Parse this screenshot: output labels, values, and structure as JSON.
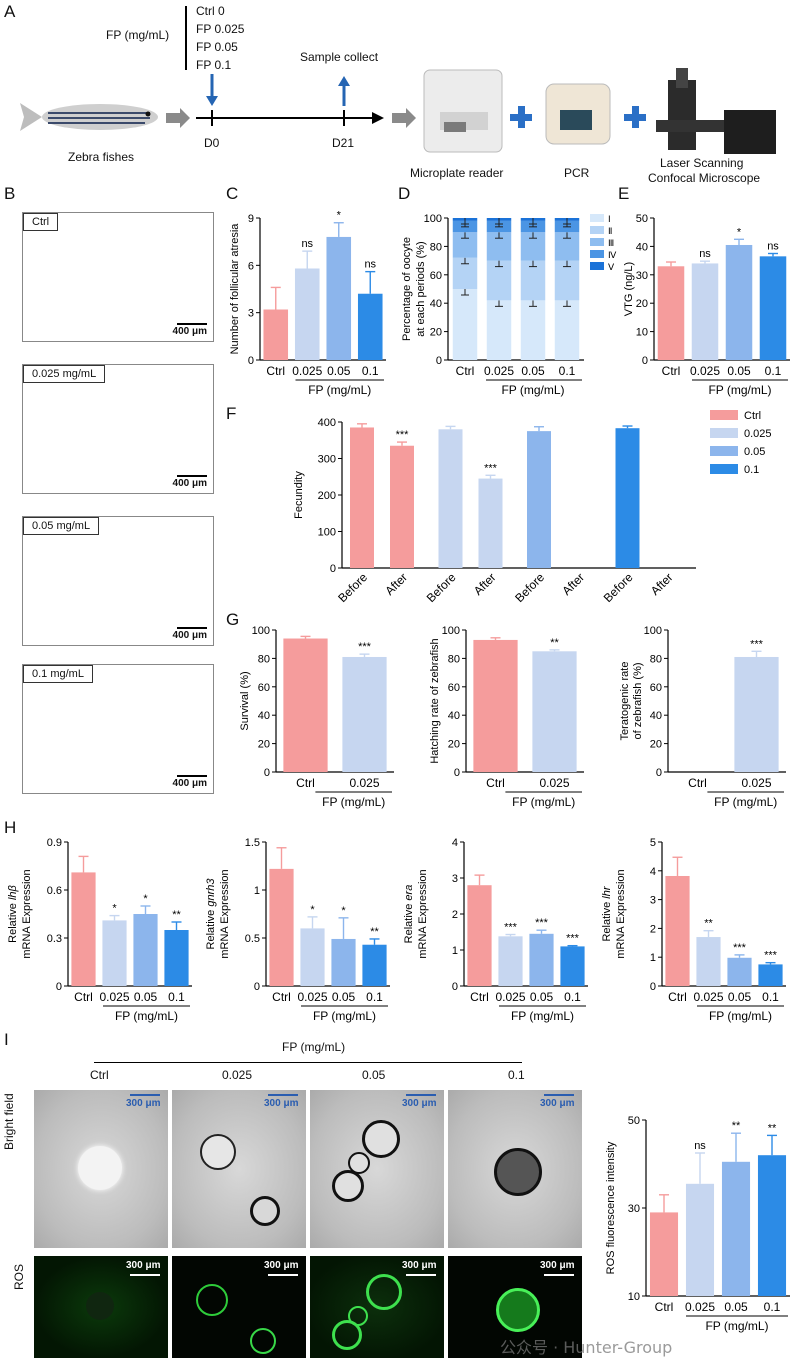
{
  "panels": {
    "A": "A",
    "B": "B",
    "C": "C",
    "D": "D",
    "E": "E",
    "F": "F",
    "G": "G",
    "H": "H",
    "I": "I"
  },
  "colors": {
    "ctrl": "#f59c9c",
    "c025": "#c6d6f0",
    "c05": "#8cb5ec",
    "c01": "#2c8be6",
    "arrow": "#2565b3",
    "plus": "#2a6fc6"
  },
  "schematic": {
    "fp_label": "FP (mg/mL)",
    "doses": [
      "Ctrl 0",
      "FP 0.025",
      "FP 0.05",
      "FP 0.1"
    ],
    "sample_collect": "Sample collect",
    "d0": "D0",
    "d21": "D21",
    "fish_label": "Zebra fishes",
    "instruments": [
      "Microplate reader",
      "PCR",
      "Laser Scanning",
      "Confocal Microscope"
    ]
  },
  "histology": {
    "labels": [
      "Ctrl",
      "0.025 mg/mL",
      "0.05 mg/mL",
      "0.1 mg/mL"
    ],
    "scale": "400 μm"
  },
  "chart_data": [
    {
      "id": "C",
      "type": "bar",
      "categories": [
        "Ctrl",
        "0.025",
        "0.05",
        "0.1"
      ],
      "values": [
        3.2,
        5.8,
        7.8,
        4.2
      ],
      "errors": [
        1.4,
        1.1,
        0.9,
        1.4
      ],
      "sig": [
        "",
        "ns",
        "*",
        "ns"
      ],
      "ylabel": "Number of follicular atresia",
      "xlabel": "FP (mg/mL)",
      "ylim": [
        0,
        9
      ],
      "yticks": [
        0,
        3,
        6,
        9
      ]
    },
    {
      "id": "D",
      "type": "bar",
      "stacked": true,
      "categories": [
        "Ctrl",
        "0.025",
        "0.05",
        "0.1"
      ],
      "series": [
        {
          "name": "Ⅰ",
          "values": [
            50,
            42,
            42,
            42
          ]
        },
        {
          "name": "Ⅱ",
          "values": [
            22,
            28,
            28,
            28
          ]
        },
        {
          "name": "Ⅲ",
          "values": [
            18,
            20,
            20,
            20
          ]
        },
        {
          "name": "Ⅳ",
          "values": [
            8,
            8,
            8,
            8
          ]
        },
        {
          "name": "Ⅴ",
          "values": [
            2,
            2,
            2,
            2
          ]
        }
      ],
      "ylabel": "Percentage of oocyte at each periods (%)",
      "xlabel": "FP (mg/mL)",
      "ylim": [
        0,
        100
      ],
      "yticks": [
        0,
        20,
        40,
        60,
        80,
        100
      ]
    },
    {
      "id": "E",
      "type": "bar",
      "categories": [
        "Ctrl",
        "0.025",
        "0.05",
        "0.1"
      ],
      "values": [
        33,
        34,
        40.5,
        36.5
      ],
      "errors": [
        1.5,
        0.8,
        2,
        1
      ],
      "sig": [
        "",
        "ns",
        "*",
        "ns"
      ],
      "ylabel": "VTG (ng/L)",
      "xlabel": "FP (mg/mL)",
      "ylim": [
        0,
        50
      ],
      "yticks": [
        0,
        10,
        20,
        30,
        40,
        50
      ]
    },
    {
      "id": "F",
      "type": "bar",
      "categories": [
        "Before",
        "After",
        "Before",
        "After",
        "Before",
        "After",
        "Before",
        "After"
      ],
      "values": [
        385,
        335,
        380,
        245,
        375,
        0,
        383,
        0
      ],
      "errors": [
        10,
        10,
        8,
        9,
        12,
        0,
        6,
        0
      ],
      "sig": [
        "",
        "***",
        "",
        "***",
        "",
        "",
        "",
        ""
      ],
      "ylabel": "Fecundity",
      "ylim": [
        0,
        400
      ],
      "yticks": [
        0,
        100,
        200,
        300,
        400
      ],
      "legend": [
        "Ctrl",
        "0.025",
        "0.05",
        "0.1"
      ]
    },
    {
      "id": "G1",
      "type": "bar",
      "categories": [
        "Ctrl",
        "0.025"
      ],
      "values": [
        94,
        81
      ],
      "errors": [
        1.5,
        2
      ],
      "sig": [
        "",
        "***"
      ],
      "ylabel": "Survival (%)",
      "xlabel": "FP (mg/mL)",
      "ylim": [
        0,
        100
      ],
      "yticks": [
        0,
        20,
        40,
        60,
        80,
        100
      ]
    },
    {
      "id": "G2",
      "type": "bar",
      "categories": [
        "Ctrl",
        "0.025"
      ],
      "values": [
        93,
        85
      ],
      "errors": [
        1.5,
        1
      ],
      "sig": [
        "",
        "**"
      ],
      "ylabel": "Hatching rate of zebrafish",
      "xlabel": "FP (mg/mL)",
      "ylim": [
        0,
        100
      ],
      "yticks": [
        0,
        20,
        40,
        60,
        80,
        100
      ]
    },
    {
      "id": "G3",
      "type": "bar",
      "categories": [
        "Ctrl",
        "0.025"
      ],
      "values": [
        0,
        81
      ],
      "errors": [
        0,
        4
      ],
      "sig": [
        "",
        "***"
      ],
      "ylabel": "Teratogenic rate of zebrafish (%)",
      "xlabel": "FP (mg/mL)",
      "ylim": [
        0,
        100
      ],
      "yticks": [
        0,
        20,
        40,
        60,
        80,
        100
      ]
    },
    {
      "id": "H1",
      "type": "bar",
      "categories": [
        "Ctrl",
        "0.025",
        "0.05",
        "0.1"
      ],
      "values": [
        0.71,
        0.41,
        0.45,
        0.35
      ],
      "errors": [
        0.1,
        0.03,
        0.05,
        0.05
      ],
      "sig": [
        "",
        "*",
        "*",
        "**"
      ],
      "ylabel": "mRNA Expression",
      "ylabel_prefix": "Relative ",
      "gene": "lhβ",
      "xlabel": "FP (mg/mL)",
      "ylim": [
        0,
        0.9
      ],
      "yticks": [
        0,
        0.3,
        0.6,
        0.9
      ]
    },
    {
      "id": "H2",
      "type": "bar",
      "categories": [
        "Ctrl",
        "0.025",
        "0.05",
        "0.1"
      ],
      "values": [
        1.22,
        0.6,
        0.49,
        0.43
      ],
      "errors": [
        0.22,
        0.12,
        0.22,
        0.06
      ],
      "sig": [
        "",
        "*",
        "*",
        "**"
      ],
      "ylabel": "mRNA Expression",
      "ylabel_prefix": "Relative ",
      "gene": "gnrh3",
      "xlabel": "FP (mg/mL)",
      "ylim": [
        0,
        1.5
      ],
      "yticks": [
        0,
        0.5,
        1.0,
        1.5
      ]
    },
    {
      "id": "H3",
      "type": "bar",
      "categories": [
        "Ctrl",
        "0.025",
        "0.05",
        "0.1"
      ],
      "values": [
        2.8,
        1.38,
        1.45,
        1.1
      ],
      "errors": [
        0.28,
        0.05,
        0.1,
        0.02
      ],
      "sig": [
        "",
        "***",
        "***",
        "***"
      ],
      "ylabel": "mRNA Expression",
      "ylabel_prefix": "Relative ",
      "gene": "era",
      "xlabel": "FP (mg/mL)",
      "ylim": [
        0,
        4
      ],
      "yticks": [
        0,
        1,
        2,
        3,
        4
      ]
    },
    {
      "id": "H4",
      "type": "bar",
      "categories": [
        "Ctrl",
        "0.025",
        "0.05",
        "0.1"
      ],
      "values": [
        3.82,
        1.7,
        0.98,
        0.75
      ],
      "errors": [
        0.65,
        0.22,
        0.1,
        0.06
      ],
      "sig": [
        "",
        "**",
        "***",
        "***"
      ],
      "ylabel": "mRNA Expression",
      "ylabel_prefix": "Relative ",
      "gene": "lhr",
      "xlabel": "FP (mg/mL)",
      "ylim": [
        0,
        5
      ],
      "yticks": [
        0,
        1,
        2,
        3,
        4,
        5
      ]
    },
    {
      "id": "I",
      "type": "bar",
      "categories": [
        "Ctrl",
        "0.025",
        "0.05",
        "0.1"
      ],
      "values": [
        29,
        35.5,
        40.5,
        42
      ],
      "errors": [
        4,
        7,
        6.5,
        4.5
      ],
      "sig": [
        "",
        "ns",
        "**",
        "**"
      ],
      "ylabel": "ROS fluorescence intensity",
      "xlabel": "FP (mg/mL)",
      "ylim": [
        10,
        50
      ],
      "yticks": [
        10,
        30,
        50
      ]
    }
  ],
  "panel_i": {
    "fp_header": "FP (mg/mL)",
    "columns": [
      "Ctrl",
      "0.025",
      "0.05",
      "0.1"
    ],
    "rows": [
      "Bright field",
      "ROS"
    ],
    "scale": "300 μm"
  },
  "watermark": "公众号 · Hunter-Group"
}
